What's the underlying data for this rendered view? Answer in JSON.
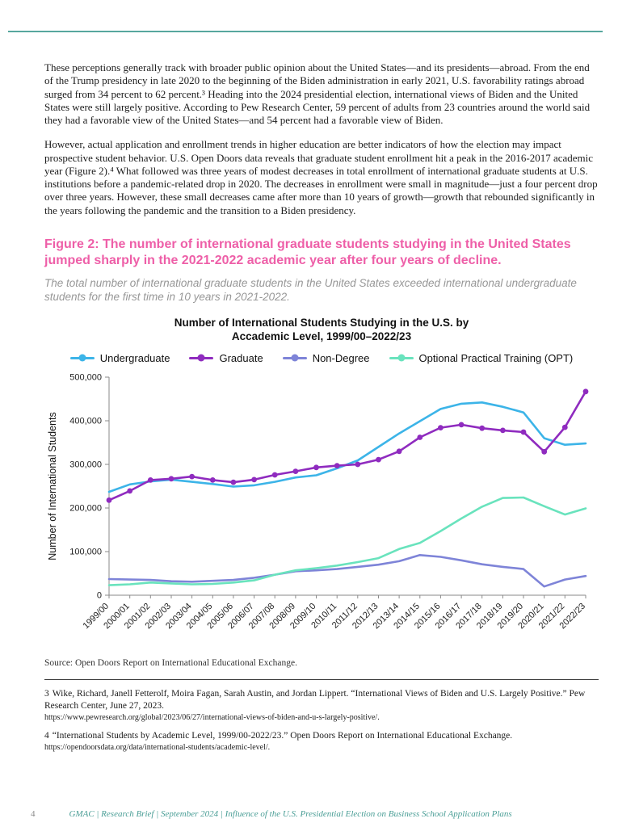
{
  "page": {
    "number": "4",
    "footer_text": "GMAC  |  Research Brief  |  September 2024  |  Influence of the U.S. Presidential Election on Business School Application Plans"
  },
  "body": {
    "p1": "These perceptions generally track with broader public opinion about the United States—and its presidents—abroad. From the end of the Trump presidency in late 2020 to the beginning of the Biden administration in early 2021, U.S. favorability ratings abroad surged from 34 percent to 62 percent.³ Heading into the 2024 presidential election, international views of Biden and the United States were still largely positive. According to Pew Research Center, 59 percent of adults from 23 countries around the world said they had a favorable view of the United States—and 54 percent had a favorable view of Biden.",
    "p2": "However, actual application and enrollment trends in higher education are better indicators of how the election may impact prospective student behavior. U.S. Open Doors data reveals that graduate student enrollment hit a peak in the 2016-2017 academic year (Figure 2).⁴ What followed was three years of modest decreases in total enrollment of international graduate students at U.S. institutions before a pandemic-related drop in 2020. The decreases in enrollment were small in magnitude—just a four percent drop over three years. However, these small decreases came after more than 10 years of growth—growth that rebounded significantly in the years following the pandemic and the transition to a Biden presidency."
  },
  "figure": {
    "title": "Figure 2: The number of international graduate students studying in the United States jumped sharply in the 2021-2022 academic year after four years of decline.",
    "subtitle": "The total number of international graduate students in the United States exceeded international undergraduate students for the first time in 10 years in 2021-2022.",
    "source": "Source: Open Doors Report on International Educational Exchange."
  },
  "footnotes": [
    {
      "marker": "3",
      "text": "Wike, Richard, Janell Fetterolf, Moira Fagan, Sarah Austin, and Jordan Lippert. “International Views of Biden and U.S. Largely Positive.” Pew Research Center, June 27, 2023.",
      "url": "https://www.pewresearch.org/global/2023/06/27/international-views-of-biden-and-u-s-largely-positive/."
    },
    {
      "marker": "4",
      "text": "“International Students by Academic Level, 1999/00-2022/23.” Open Doors Report on International Educational Exchange.",
      "url": "https://opendoorsdata.org/data/international-students/academic-level/."
    }
  ],
  "chart_data": {
    "type": "line",
    "title_line1": "Number of International Students Studying in the U.S. by",
    "title_line2": "Accademic Level, 1999/00–2022/23",
    "ylabel": "Number of International Students",
    "ylim": [
      0,
      500000
    ],
    "ytick_step": 100000,
    "grid": false,
    "legend_position": "top",
    "categories": [
      "1999/00",
      "2000/01",
      "2001/02",
      "2002/03",
      "2003/04",
      "2004/05",
      "2005/06",
      "2006/07",
      "2007/08",
      "2008/09",
      "2009/10",
      "2010/11",
      "2011/12",
      "2012/13",
      "2013/14",
      "2014/15",
      "2015/16",
      "2016/17",
      "2017/18",
      "2018/19",
      "2019/20",
      "2020/21",
      "2021/22",
      "2022/23"
    ],
    "series": [
      {
        "name": "Undergraduate",
        "color": "#3cb4e8",
        "markers": false,
        "values": [
          237000,
          254000,
          261000,
          265000,
          260000,
          255000,
          249000,
          252000,
          260000,
          270000,
          275000,
          291000,
          309000,
          340000,
          371000,
          399000,
          427000,
          439000,
          442000,
          432000,
          419000,
          360000,
          345000,
          348000
        ]
      },
      {
        "name": "Graduate",
        "color": "#8f2bbf",
        "markers": true,
        "values": [
          218000,
          239000,
          264000,
          267000,
          272000,
          264000,
          259000,
          265000,
          276000,
          284000,
          293000,
          297000,
          300000,
          311000,
          330000,
          362000,
          384000,
          391000,
          383000,
          378000,
          374000,
          329000,
          385000,
          467000
        ]
      },
      {
        "name": "Non-Degree",
        "color": "#7e84d8",
        "markers": false,
        "values": [
          37000,
          36000,
          35000,
          32000,
          31000,
          33000,
          35000,
          40000,
          47000,
          55000,
          57000,
          60000,
          65000,
          70000,
          78000,
          92000,
          88000,
          80000,
          71000,
          65000,
          60000,
          20000,
          36000,
          44000
        ]
      },
      {
        "name": "Optional Practical Training (OPT)",
        "color": "#69e3bd",
        "markers": false,
        "values": [
          23000,
          25000,
          29000,
          27000,
          25000,
          26000,
          29000,
          34000,
          47000,
          57000,
          62000,
          68000,
          76000,
          85000,
          106000,
          120000,
          147000,
          176000,
          203000,
          223000,
          224000,
          204000,
          185000,
          199000
        ]
      }
    ]
  },
  "colors": {
    "accent_teal": "#57a79e",
    "figure_title_pink": "#ee5fa8",
    "footer_teal": "#4a9e96"
  }
}
